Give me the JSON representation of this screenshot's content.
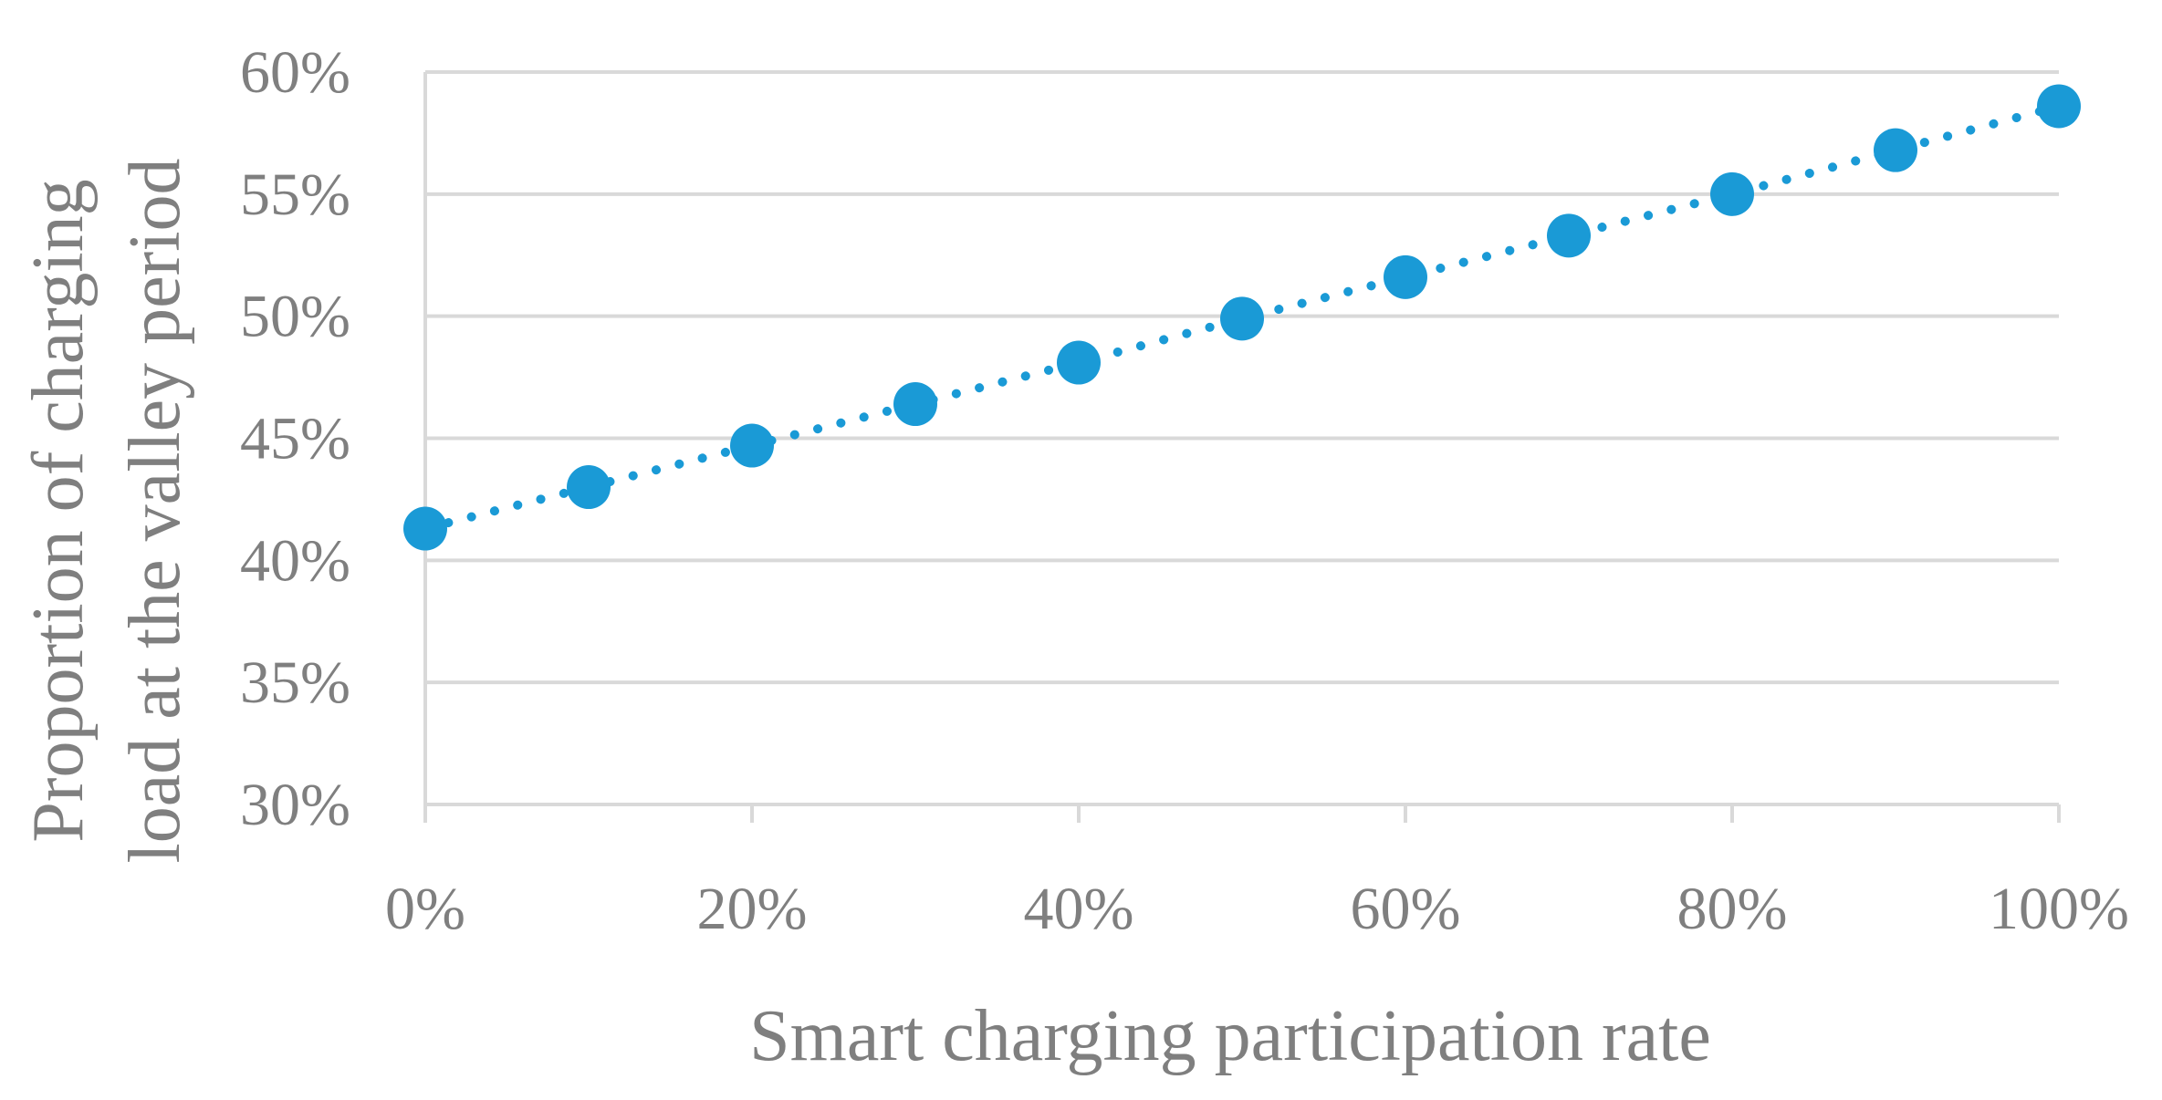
{
  "chart_data": {
    "type": "line",
    "title": "",
    "xlabel": "Smart charging participation rate",
    "ylabel_lines": [
      "Proportion of charging",
      "load at the valley period"
    ],
    "x": [
      0,
      10,
      20,
      30,
      40,
      50,
      60,
      70,
      80,
      90,
      100
    ],
    "xlim": [
      0,
      100
    ],
    "x_tick_values": [
      0,
      20,
      40,
      60,
      80,
      100
    ],
    "x_tick_labels": [
      "0%",
      "20%",
      "40%",
      "60%",
      "80%",
      "100%"
    ],
    "ylim": [
      30,
      60
    ],
    "y_tick_values": [
      30,
      35,
      40,
      45,
      50,
      55,
      60
    ],
    "y_tick_labels": [
      "30%",
      "35%",
      "40%",
      "45%",
      "50%",
      "55%",
      "60%"
    ],
    "grid": true,
    "legend": "none",
    "series": [
      {
        "name": "Proportion of charging load at the valley period",
        "values": [
          41.3,
          43.0,
          44.7,
          46.4,
          48.1,
          49.9,
          51.6,
          53.3,
          55.0,
          56.8,
          58.6
        ],
        "color": "#1a9ad6",
        "line_style": "dotted",
        "marker": "circle"
      }
    ]
  },
  "colors": {
    "grid": "#d9d9d9",
    "axis": "#d9d9d9",
    "text": "#7f7f7f",
    "series": "#1a9ad6"
  }
}
